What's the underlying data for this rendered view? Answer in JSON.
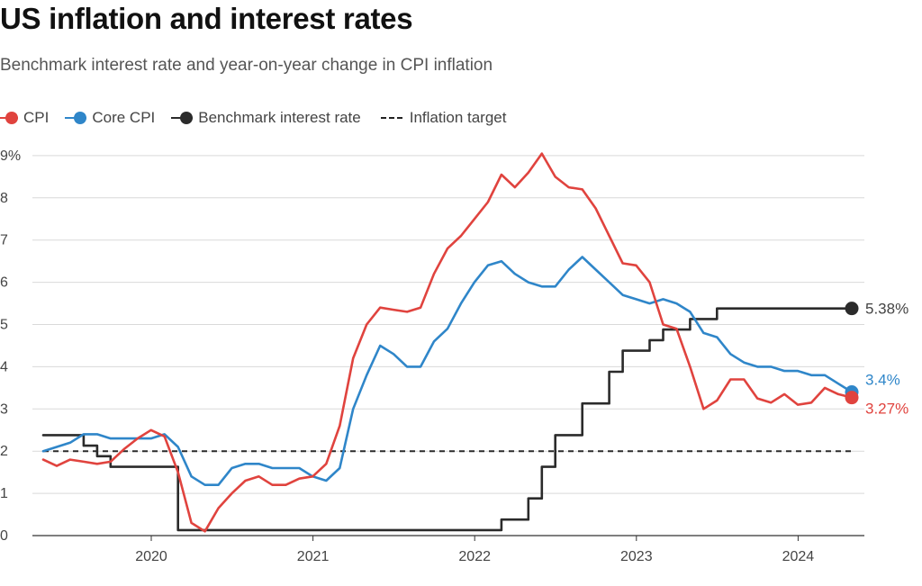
{
  "title": "US inflation and interest rates",
  "subtitle": "Benchmark interest rate and year-on-year change in CPI inflation",
  "legend": {
    "cpi": "CPI",
    "core_cpi": "Core CPI",
    "benchmark": "Benchmark interest rate",
    "target": "Inflation target"
  },
  "colors": {
    "cpi": "#e0433e",
    "core_cpi": "#2f86c9",
    "benchmark": "#2b2b2b",
    "target": "#2b2b2b",
    "grid": "#d9d9d9"
  },
  "end_labels": {
    "benchmark": "5.38%",
    "core_cpi": "3.4%",
    "cpi": "3.27%"
  },
  "chart_data": {
    "type": "line",
    "title": "US inflation and interest rates",
    "subtitle": "Benchmark interest rate and year-on-year change in CPI inflation",
    "xlabel": "",
    "ylabel": "",
    "x_start": "2019-05",
    "x_step": "month",
    "xlim": [
      2019.333,
      2024.5
    ],
    "ylim": [
      0,
      9
    ],
    "y_ticks": [
      0,
      1,
      2,
      3,
      4,
      5,
      6,
      7,
      8,
      9
    ],
    "y_tick_labels": [
      "0",
      "1",
      "2",
      "3",
      "4",
      "5",
      "6",
      "7",
      "8",
      "9%"
    ],
    "x_ticks": [
      2020,
      2021,
      2022,
      2023,
      2024
    ],
    "x_tick_labels": [
      "2020",
      "2021",
      "2022",
      "2023",
      "2024"
    ],
    "series": [
      {
        "name": "CPI",
        "key": "cpi",
        "step": false,
        "values": [
          1.8,
          1.65,
          1.8,
          1.75,
          1.7,
          1.75,
          2.05,
          2.3,
          2.5,
          2.35,
          1.5,
          0.3,
          0.1,
          0.65,
          1.0,
          1.3,
          1.4,
          1.2,
          1.2,
          1.35,
          1.4,
          1.7,
          2.6,
          4.2,
          5.0,
          5.4,
          5.35,
          5.3,
          5.4,
          6.2,
          6.8,
          7.1,
          7.5,
          7.9,
          8.55,
          8.25,
          8.6,
          9.05,
          8.5,
          8.25,
          8.2,
          7.75,
          7.1,
          6.45,
          6.4,
          6.0,
          5.0,
          4.9,
          4.0,
          3.0,
          3.2,
          3.7,
          3.7,
          3.25,
          3.15,
          3.35,
          3.1,
          3.15,
          3.5,
          3.35,
          3.27
        ]
      },
      {
        "name": "Core CPI",
        "key": "core_cpi",
        "step": false,
        "values": [
          2.0,
          2.1,
          2.2,
          2.4,
          2.4,
          2.3,
          2.3,
          2.3,
          2.3,
          2.4,
          2.1,
          1.4,
          1.2,
          1.2,
          1.6,
          1.7,
          1.7,
          1.6,
          1.6,
          1.6,
          1.4,
          1.3,
          1.6,
          3.0,
          3.8,
          4.5,
          4.3,
          4.0,
          4.0,
          4.6,
          4.9,
          5.5,
          6.0,
          6.4,
          6.5,
          6.2,
          6.0,
          5.9,
          5.9,
          6.3,
          6.6,
          6.3,
          6.0,
          5.7,
          5.6,
          5.5,
          5.6,
          5.5,
          5.3,
          4.8,
          4.7,
          4.3,
          4.1,
          4.0,
          4.0,
          3.9,
          3.9,
          3.8,
          3.8,
          3.6,
          3.4
        ]
      },
      {
        "name": "Benchmark interest rate",
        "key": "benchmark",
        "step": true,
        "values": [
          2.38,
          2.38,
          2.38,
          2.13,
          1.88,
          1.63,
          1.63,
          1.63,
          1.63,
          1.63,
          0.13,
          0.13,
          0.13,
          0.13,
          0.13,
          0.13,
          0.13,
          0.13,
          0.13,
          0.13,
          0.13,
          0.13,
          0.13,
          0.13,
          0.13,
          0.13,
          0.13,
          0.13,
          0.13,
          0.13,
          0.13,
          0.13,
          0.13,
          0.13,
          0.38,
          0.38,
          0.88,
          1.63,
          2.38,
          2.38,
          3.13,
          3.13,
          3.88,
          4.38,
          4.38,
          4.63,
          4.88,
          4.88,
          5.13,
          5.13,
          5.38,
          5.38,
          5.38,
          5.38,
          5.38,
          5.38,
          5.38,
          5.38,
          5.38,
          5.38,
          5.38
        ]
      },
      {
        "name": "Inflation target",
        "key": "target",
        "step": false,
        "dashed": true,
        "constant": 2
      }
    ],
    "legend_position": "top-left",
    "grid": true
  }
}
